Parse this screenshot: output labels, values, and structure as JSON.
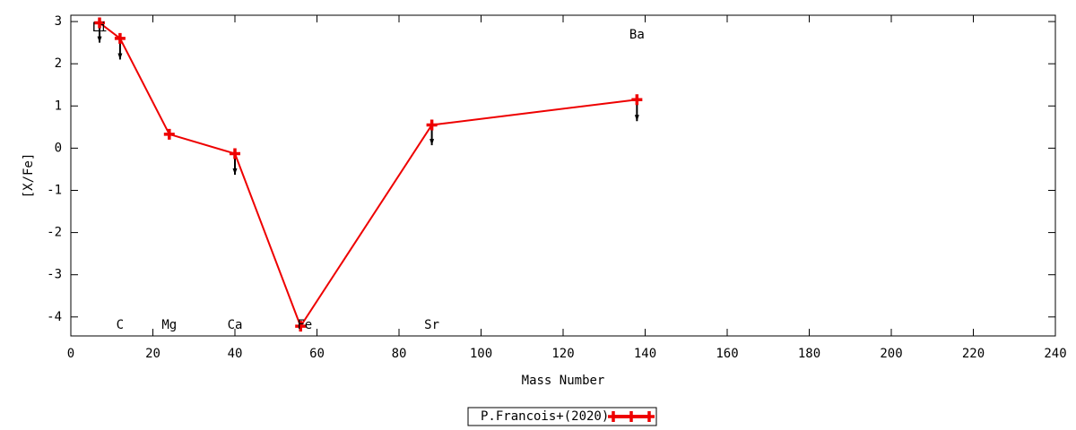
{
  "chart_data": {
    "type": "line",
    "x_label": "Mass Number",
    "y_label": "[X/Fe]",
    "series": [
      {
        "name": "P.Francois+(2020)",
        "color": "#ee0000",
        "x": [
          7,
          12,
          24,
          40,
          56,
          88,
          138
        ],
        "values": [
          2.97,
          2.6,
          0.33,
          -0.13,
          -4.22,
          0.55,
          1.15
        ],
        "lower": [
          2.5,
          2.1,
          null,
          -0.63,
          null,
          0.07,
          0.64
        ]
      }
    ],
    "annotations": [
      {
        "text": "Li",
        "x": 7,
        "y": 2.85
      },
      {
        "text": "C",
        "x": 12,
        "y": -4.2
      },
      {
        "text": "Mg",
        "x": 24,
        "y": -4.2
      },
      {
        "text": "Ca",
        "x": 40,
        "y": -4.2
      },
      {
        "text": "Fe",
        "x": 57,
        "y": -4.2
      },
      {
        "text": "Sr",
        "x": 88,
        "y": -4.2
      },
      {
        "text": "Ba",
        "x": 138,
        "y": 2.68
      }
    ],
    "xlim": [
      0,
      240
    ],
    "xticks": [
      0,
      20,
      40,
      60,
      80,
      100,
      120,
      140,
      160,
      180,
      200,
      220,
      240
    ],
    "ylim": [
      -4.45,
      3.15
    ],
    "yticks": [
      -4,
      -3,
      -2,
      -1,
      0,
      1,
      2,
      3
    ],
    "legend": "bottom"
  }
}
